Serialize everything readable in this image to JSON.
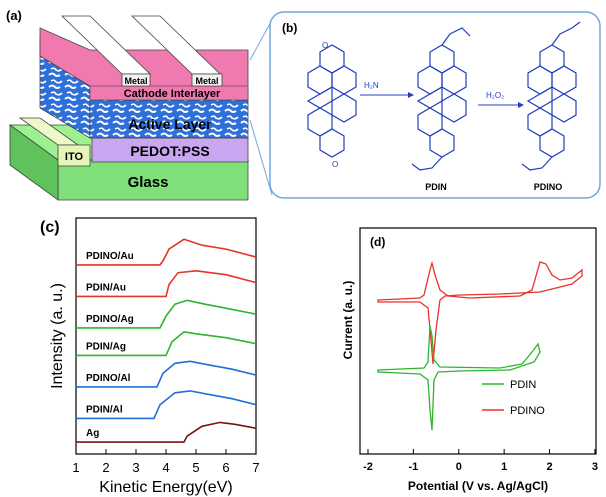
{
  "panel_a": {
    "label": "(a)",
    "layers": {
      "metal_left": "Metal",
      "metal_right": "Metal",
      "cathode_interlayer": "Cathode Interlayer",
      "active_layer": "Active Layer",
      "ito": "ITO",
      "pedot": "PEDOT:PSS",
      "glass": "Glass"
    },
    "colors": {
      "glass": "#7fe07a",
      "pedot": "#c9a6f0",
      "cathode": "#f07ab0",
      "active": "#2f6fd8",
      "ito": "#e8f5b8",
      "metal": "#ffffff"
    }
  },
  "panel_b": {
    "label": "(b)",
    "reagent_1": "H₂N",
    "reagent_2": "H₂O₂",
    "product_1": "PDIN",
    "product_2": "PDINO",
    "molecule_color": "#1f3fbf"
  },
  "panel_c": {
    "label": "(c)",
    "chart_data": {
      "type": "line",
      "xlabel": "Kinetic Energy(eV)",
      "ylabel": "Intensity (a. u.)",
      "xlim": [
        1,
        7
      ],
      "xticks": [
        "1",
        "2",
        "3",
        "4",
        "5",
        "6",
        "7"
      ],
      "series": [
        {
          "name": "PDINO/Au",
          "color": "#e8332a",
          "points": [
            [
              1,
              0.92
            ],
            [
              3.8,
              0.92
            ],
            [
              3.9,
              0.94
            ],
            [
              4.1,
              1.0
            ],
            [
              4.6,
              1.05
            ],
            [
              5.2,
              1.02
            ],
            [
              6,
              1.0
            ],
            [
              7,
              0.96
            ]
          ]
        },
        {
          "name": "PDIN/Au",
          "color": "#e8332a",
          "points": [
            [
              1,
              0.76
            ],
            [
              4.0,
              0.76
            ],
            [
              4.1,
              0.82
            ],
            [
              4.4,
              0.88
            ],
            [
              5.0,
              0.89
            ],
            [
              6,
              0.87
            ],
            [
              7,
              0.83
            ]
          ]
        },
        {
          "name": "PDINO/Ag",
          "color": "#2db52d",
          "points": [
            [
              1,
              0.6
            ],
            [
              3.8,
              0.6
            ],
            [
              4.0,
              0.66
            ],
            [
              4.3,
              0.72
            ],
            [
              4.7,
              0.74
            ],
            [
              5.3,
              0.72
            ],
            [
              6,
              0.7
            ],
            [
              7,
              0.67
            ]
          ]
        },
        {
          "name": "PDIN/Ag",
          "color": "#2db52d",
          "points": [
            [
              1,
              0.46
            ],
            [
              4.0,
              0.46
            ],
            [
              4.2,
              0.53
            ],
            [
              4.6,
              0.58
            ],
            [
              5.0,
              0.57
            ],
            [
              6,
              0.55
            ],
            [
              7,
              0.52
            ]
          ]
        },
        {
          "name": "PDINO/Al",
          "color": "#1f6fd8",
          "points": [
            [
              1,
              0.3
            ],
            [
              3.7,
              0.3
            ],
            [
              3.9,
              0.37
            ],
            [
              4.3,
              0.42
            ],
            [
              4.8,
              0.43
            ],
            [
              5.5,
              0.41
            ],
            [
              6.2,
              0.39
            ],
            [
              7,
              0.36
            ]
          ]
        },
        {
          "name": "PDIN/Al",
          "color": "#1f6fd8",
          "points": [
            [
              1,
              0.14
            ],
            [
              3.6,
              0.14
            ],
            [
              3.8,
              0.21
            ],
            [
              4.3,
              0.27
            ],
            [
              4.8,
              0.28
            ],
            [
              5.5,
              0.26
            ],
            [
              6.2,
              0.24
            ],
            [
              7,
              0.21
            ]
          ]
        },
        {
          "name": "Ag",
          "color": "#7a1414",
          "points": [
            [
              1,
              0.02
            ],
            [
              4.6,
              0.02
            ],
            [
              4.7,
              0.05
            ],
            [
              5.2,
              0.1
            ],
            [
              5.8,
              0.12
            ],
            [
              6.3,
              0.11
            ],
            [
              7,
              0.09
            ]
          ]
        }
      ]
    }
  },
  "panel_d": {
    "label": "(d)",
    "chart_data": {
      "type": "line",
      "xlabel": "Potential (V vs. Ag/AgCl)",
      "ylabel": "Current (a. u.)",
      "xlim": [
        -2,
        3.2
      ],
      "xticks": [
        "-2",
        "-1",
        "0",
        "1",
        "2",
        "3"
      ],
      "legend_position": "lower-right",
      "series": [
        {
          "name": "PDIN",
          "color": "#2db52d"
        },
        {
          "name": "PDINO",
          "color": "#e8332a"
        }
      ]
    }
  }
}
